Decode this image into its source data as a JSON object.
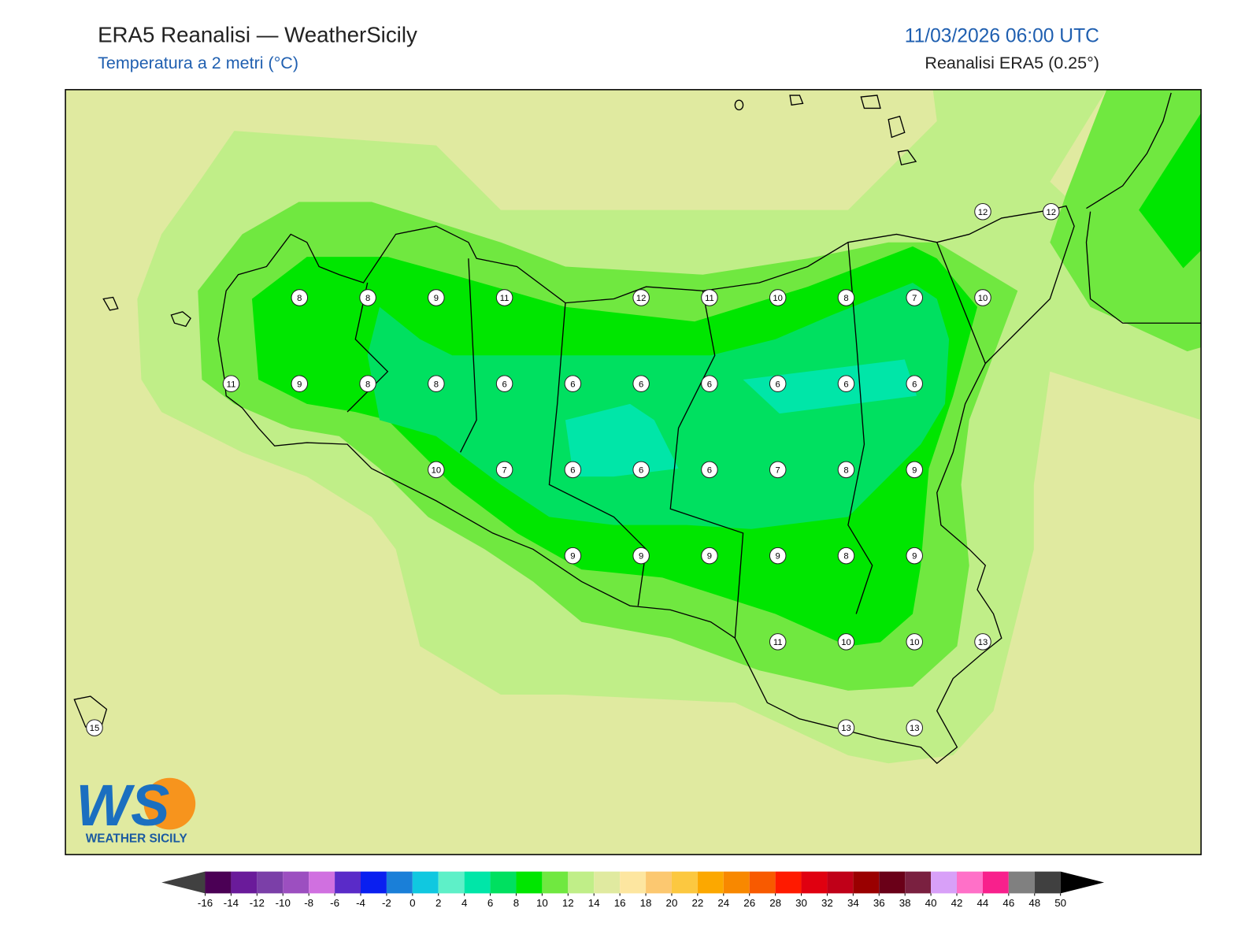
{
  "header": {
    "title": "ERA5 Reanalisi — WeatherSicily",
    "subtitle": "Temperatura a 2 metri (°C)",
    "datetime": "11/03/2026 06:00 UTC",
    "source": "Reanalisi ERA5 (0.25°)"
  },
  "grid": {
    "rows": [
      [
        null,
        null,
        null,
        null,
        null,
        null,
        null,
        null,
        null,
        null,
        null,
        null,
        null,
        12,
        12
      ],
      [
        null,
        null,
        null,
        8,
        8,
        9,
        11,
        null,
        12,
        11,
        10,
        8,
        7,
        10,
        null
      ],
      [
        null,
        null,
        11,
        9,
        8,
        8,
        6,
        6,
        6,
        6,
        6,
        6,
        6,
        null,
        null
      ],
      [
        null,
        null,
        null,
        null,
        null,
        10,
        7,
        6,
        6,
        6,
        7,
        8,
        9,
        null,
        null
      ],
      [
        null,
        null,
        null,
        null,
        null,
        null,
        null,
        9,
        9,
        9,
        9,
        8,
        9,
        null,
        null
      ],
      [
        null,
        null,
        null,
        null,
        null,
        null,
        null,
        null,
        null,
        null,
        11,
        10,
        10,
        13,
        null
      ],
      [
        15,
        null,
        null,
        null,
        null,
        null,
        null,
        null,
        null,
        null,
        null,
        13,
        13,
        null,
        null
      ]
    ]
  },
  "colorbar": {
    "ticks": [
      -16,
      -14,
      -12,
      -10,
      -8,
      -6,
      -4,
      -2,
      0,
      2,
      4,
      6,
      8,
      10,
      12,
      14,
      16,
      18,
      20,
      22,
      24,
      26,
      28,
      30,
      32,
      34,
      36,
      38,
      40,
      42,
      44,
      46,
      48,
      50
    ],
    "colors": [
      "#4b0055",
      "#6a1b9a",
      "#7b3fa8",
      "#9c4fc0",
      "#d070e0",
      "#5a2bc8",
      "#0a1ff0",
      "#1a7fd8",
      "#10c8e0",
      "#5ef0c8",
      "#00e6a8",
      "#00e060",
      "#00e600",
      "#70e840",
      "#c0ee88",
      "#e0eaa0",
      "#fde6a0",
      "#fcc870",
      "#fcc840",
      "#fca800",
      "#f88800",
      "#f85a00",
      "#ff1a00",
      "#e00010",
      "#c00018",
      "#9a0000",
      "#6a0018",
      "#7a2040",
      "#d8a0f8",
      "#ff70c8",
      "#f8208c",
      "#808080",
      "#404040"
    ]
  },
  "logo": {
    "letters": "WS",
    "caption": "WEATHER SICILY"
  }
}
